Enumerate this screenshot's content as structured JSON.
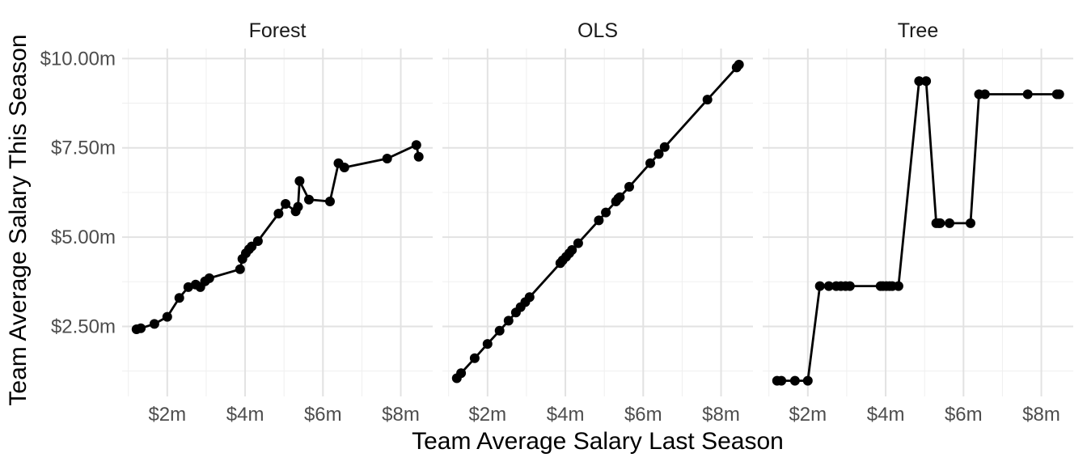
{
  "chart_data": {
    "type": "line",
    "title": "",
    "xlabel": "Team Average Salary Last Season",
    "ylabel": "Team Average Salary This Season",
    "xlim": [
      0.84,
      8.82
    ],
    "ylim": [
      0.54,
      10.28
    ],
    "grid": true,
    "legend": "none",
    "x_ticks": [
      {
        "v": 2,
        "label": "$2m"
      },
      {
        "v": 4,
        "label": "$4m"
      },
      {
        "v": 6,
        "label": "$6m"
      },
      {
        "v": 8,
        "label": "$8m"
      }
    ],
    "x_minor_ticks": [
      1,
      3,
      5,
      7
    ],
    "y_ticks": [
      {
        "v": 2.5,
        "label": "$2.50m"
      },
      {
        "v": 5.0,
        "label": "$5.00m"
      },
      {
        "v": 7.5,
        "label": "$7.50m"
      },
      {
        "v": 10.0,
        "label": "$10.00m"
      }
    ],
    "y_minor_ticks": [
      1.25,
      3.75,
      6.25,
      8.75
    ],
    "x": [
      1.21,
      1.32,
      1.67,
      2.0,
      2.31,
      2.54,
      2.73,
      2.85,
      2.97,
      3.08,
      3.87,
      3.93,
      4.02,
      4.1,
      4.17,
      4.33,
      4.86,
      5.04,
      5.3,
      5.36,
      5.4,
      5.64,
      6.18,
      6.4,
      6.55,
      7.65,
      8.4,
      8.46
    ],
    "facets": [
      {
        "title": "Forest",
        "y": [
          2.42,
          2.45,
          2.57,
          2.77,
          3.3,
          3.6,
          3.67,
          3.6,
          3.76,
          3.85,
          4.1,
          4.39,
          4.55,
          4.66,
          4.74,
          4.89,
          5.66,
          5.93,
          5.72,
          5.85,
          6.57,
          6.05,
          6.0,
          7.07,
          6.95,
          7.2,
          7.58,
          7.25
        ]
      },
      {
        "title": "OLS",
        "y": [
          1.05,
          1.19,
          1.61,
          2.01,
          2.38,
          2.66,
          2.89,
          3.04,
          3.18,
          3.32,
          4.27,
          4.35,
          4.45,
          4.55,
          4.64,
          4.83,
          5.47,
          5.69,
          6.0,
          6.08,
          6.12,
          6.41,
          7.07,
          7.33,
          7.52,
          8.85,
          9.75,
          9.83
        ]
      },
      {
        "title": "Tree",
        "y": [
          0.98,
          0.98,
          0.98,
          0.98,
          3.63,
          3.63,
          3.63,
          3.63,
          3.63,
          3.63,
          3.63,
          3.63,
          3.63,
          3.63,
          3.63,
          3.63,
          9.37,
          9.37,
          5.39,
          5.39,
          5.39,
          5.39,
          5.39,
          9.0,
          9.0,
          9.0,
          9.0,
          9.0
        ]
      }
    ],
    "point_color": "#000000",
    "line_color": "#000000",
    "background_color": "#ffffff",
    "major_grid_color": "#e2e2e2",
    "minor_grid_color": "#efefef",
    "tick_label_color": "#4d4d4d",
    "axis_title_color": "#000000",
    "strip_title_color": "#1a1a1a"
  }
}
